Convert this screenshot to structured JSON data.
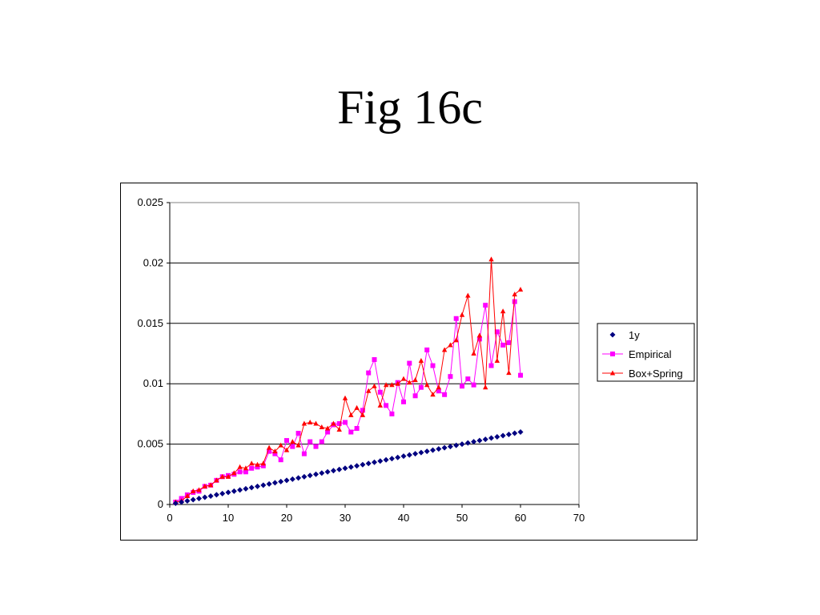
{
  "slide": {
    "title": "Fig 16c"
  },
  "chart_data": {
    "type": "line",
    "title": "",
    "xlabel": "",
    "ylabel": "",
    "xlim": [
      0,
      70
    ],
    "ylim": [
      0,
      0.025
    ],
    "x_ticks": [
      0,
      10,
      20,
      30,
      40,
      50,
      60,
      70
    ],
    "x_tick_labels": [
      "0",
      "10",
      "20",
      "30",
      "40",
      "50",
      "60",
      "70"
    ],
    "y_ticks": [
      0,
      0.005,
      0.01,
      0.015,
      0.02,
      0.025
    ],
    "y_tick_labels": [
      "0",
      "0.005",
      "0.01",
      "0.015",
      "0.02",
      "0.025"
    ],
    "grid": "horizontal",
    "legend_position": "right",
    "x": [
      1,
      2,
      3,
      4,
      5,
      6,
      7,
      8,
      9,
      10,
      11,
      12,
      13,
      14,
      15,
      16,
      17,
      18,
      19,
      20,
      21,
      22,
      23,
      24,
      25,
      26,
      27,
      28,
      29,
      30,
      31,
      32,
      33,
      34,
      35,
      36,
      37,
      38,
      39,
      40,
      41,
      42,
      43,
      44,
      45,
      46,
      47,
      48,
      49,
      50,
      51,
      52,
      53,
      54,
      55,
      56,
      57,
      58,
      59,
      60
    ],
    "series": [
      {
        "name": "1y",
        "color": "#000080",
        "marker": "diamond",
        "line": false,
        "values": [
          0.0001,
          0.0002,
          0.0003,
          0.0004,
          0.0005,
          0.0006,
          0.0007,
          0.0008,
          0.0009,
          0.001,
          0.0011,
          0.0012,
          0.0013,
          0.0014,
          0.0015,
          0.0016,
          0.0017,
          0.0018,
          0.0019,
          0.002,
          0.0021,
          0.0022,
          0.0023,
          0.0024,
          0.0025,
          0.0026,
          0.0027,
          0.0028,
          0.0029,
          0.003,
          0.0031,
          0.0032,
          0.0033,
          0.0034,
          0.0035,
          0.0036,
          0.0037,
          0.0038,
          0.0039,
          0.004,
          0.0041,
          0.0042,
          0.0043,
          0.0044,
          0.0045,
          0.0046,
          0.0047,
          0.0048,
          0.0049,
          0.005,
          0.0051,
          0.0052,
          0.0053,
          0.0054,
          0.0055,
          0.0056,
          0.0057,
          0.0058,
          0.0059,
          0.006
        ]
      },
      {
        "name": "Empirical",
        "color": "#ff00ff",
        "marker": "square",
        "line": true,
        "values": [
          0.0002,
          0.0005,
          0.0008,
          0.001,
          0.0011,
          0.0015,
          0.0016,
          0.002,
          0.0023,
          0.0024,
          0.0025,
          0.0027,
          0.0027,
          0.003,
          0.0031,
          0.0032,
          0.0044,
          0.0042,
          0.0037,
          0.0053,
          0.0048,
          0.0059,
          0.0042,
          0.0052,
          0.0048,
          0.0052,
          0.006,
          0.0066,
          0.0067,
          0.0068,
          0.006,
          0.0063,
          0.0078,
          0.0109,
          0.012,
          0.0093,
          0.0082,
          0.0075,
          0.0101,
          0.0085,
          0.0117,
          0.009,
          0.0097,
          0.0128,
          0.0115,
          0.0094,
          0.0091,
          0.0106,
          0.0154,
          0.0098,
          0.0104,
          0.0099,
          0.0137,
          0.0165,
          0.0115,
          0.0143,
          0.0132,
          0.0134,
          0.0168,
          0.0107
        ]
      },
      {
        "name": "Box+Spring",
        "color": "#ff0000",
        "marker": "triangle",
        "line": true,
        "values": [
          0.0002,
          0.0003,
          0.0007,
          0.0011,
          0.0012,
          0.0015,
          0.0016,
          0.002,
          0.0023,
          0.0023,
          0.0026,
          0.0031,
          0.003,
          0.0034,
          0.0033,
          0.0034,
          0.0047,
          0.0044,
          0.0049,
          0.0045,
          0.0052,
          0.0049,
          0.0067,
          0.0068,
          0.0067,
          0.0064,
          0.0063,
          0.0067,
          0.0062,
          0.0088,
          0.0074,
          0.008,
          0.0074,
          0.0094,
          0.0098,
          0.0082,
          0.0099,
          0.0099,
          0.01,
          0.0104,
          0.0101,
          0.0103,
          0.0119,
          0.0099,
          0.0091,
          0.0097,
          0.0128,
          0.0132,
          0.0136,
          0.0157,
          0.0173,
          0.0125,
          0.014,
          0.0097,
          0.0203,
          0.0119,
          0.016,
          0.0109,
          0.0174,
          0.0178
        ]
      }
    ]
  }
}
